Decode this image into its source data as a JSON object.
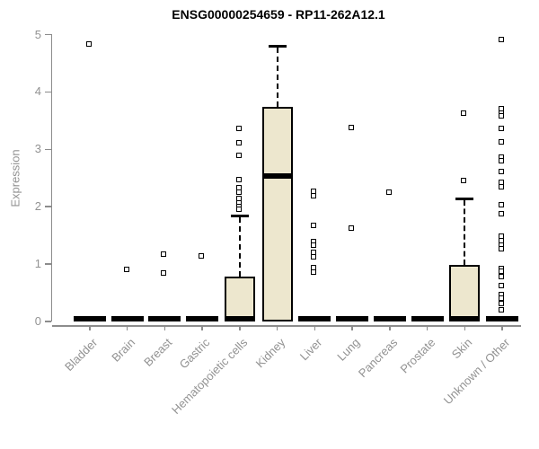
{
  "title": "ENSG00000254659 - RP11-262A12.1",
  "ylabel": "Expression",
  "colors": {
    "box_fill": "#EDE7CE",
    "box_stroke": "#000000",
    "axis_line": "#8c8c8c",
    "tick_label": "#929292",
    "title_text": "#000000",
    "outlier_fill": "#ffffff"
  },
  "chart_data": {
    "type": "boxplot",
    "title": "ENSG00000254659 - RP11-262A12.1",
    "xlabel": "",
    "ylabel": "Expression",
    "ylim": [
      0,
      5
    ],
    "yticks": [
      0,
      1,
      2,
      3,
      4,
      5
    ],
    "grid": false,
    "legend": "none",
    "outlier_marker": "open-square",
    "categories": [
      "Bladder",
      "Brain",
      "Breast",
      "Gastric",
      "Hematopoietic cells",
      "Kidney",
      "Liver",
      "Lung",
      "Pancreas",
      "Prostate",
      "Skin",
      "Unknown / Other"
    ],
    "boxes": [
      {
        "label": "Bladder",
        "q1": 0,
        "median": 0,
        "q3": 0,
        "whisker_low": 0,
        "whisker_high": 0,
        "outliers": [
          4.84
        ]
      },
      {
        "label": "Brain",
        "q1": 0,
        "median": 0,
        "q3": 0,
        "whisker_low": 0,
        "whisker_high": 0,
        "outliers": [
          0.9
        ]
      },
      {
        "label": "Breast",
        "q1": 0,
        "median": 0,
        "q3": 0,
        "whisker_low": 0,
        "whisker_high": 0,
        "outliers": [
          1.18,
          0.84
        ]
      },
      {
        "label": "Gastric",
        "q1": 0,
        "median": 0,
        "q3": 0,
        "whisker_low": 0,
        "whisker_high": 0,
        "outliers": [
          1.14
        ]
      },
      {
        "label": "Hematopoietic cells",
        "q1": 0,
        "median": 0,
        "q3": 0.79,
        "whisker_low": 0,
        "whisker_high": 1.85,
        "outliers": [
          3.37,
          3.11,
          2.9,
          2.48,
          2.33,
          2.25,
          2.14,
          2.07,
          2.0,
          1.95
        ]
      },
      {
        "label": "Kidney",
        "q1": 0,
        "median": 2.53,
        "q3": 3.74,
        "whisker_low": 0,
        "whisker_high": 4.8,
        "outliers": []
      },
      {
        "label": "Liver",
        "q1": 0,
        "median": 0,
        "q3": 0,
        "whisker_low": 0,
        "whisker_high": 0,
        "outliers": [
          2.27,
          2.19,
          1.67,
          1.39,
          1.33,
          1.21,
          1.13,
          0.94,
          0.86
        ]
      },
      {
        "label": "Lung",
        "q1": 0,
        "median": 0,
        "q3": 0,
        "whisker_low": 0,
        "whisker_high": 0,
        "outliers": [
          3.38,
          1.63
        ]
      },
      {
        "label": "Pancreas",
        "q1": 0,
        "median": 0,
        "q3": 0,
        "whisker_low": 0,
        "whisker_high": 0,
        "outliers": [
          2.26
        ]
      },
      {
        "label": "Prostate",
        "q1": 0,
        "median": 0,
        "q3": 0,
        "whisker_low": 0,
        "whisker_high": 0,
        "outliers": []
      },
      {
        "label": "Skin",
        "q1": 0,
        "median": 0,
        "q3": 0.98,
        "whisker_low": 0,
        "whisker_high": 2.14,
        "outliers": [
          3.63,
          2.46
        ]
      },
      {
        "label": "Unknown / Other",
        "q1": 0,
        "median": 0,
        "q3": 0,
        "whisker_low": 0,
        "whisker_high": 0,
        "outliers": [
          4.91,
          3.71,
          3.63,
          3.58,
          3.37,
          3.13,
          2.87,
          2.8,
          2.61,
          2.43,
          2.35,
          2.04,
          1.88,
          1.49,
          1.41,
          1.33,
          1.26,
          0.92,
          0.87,
          0.79,
          0.63,
          0.47,
          0.4,
          0.32,
          0.21
        ]
      }
    ]
  }
}
